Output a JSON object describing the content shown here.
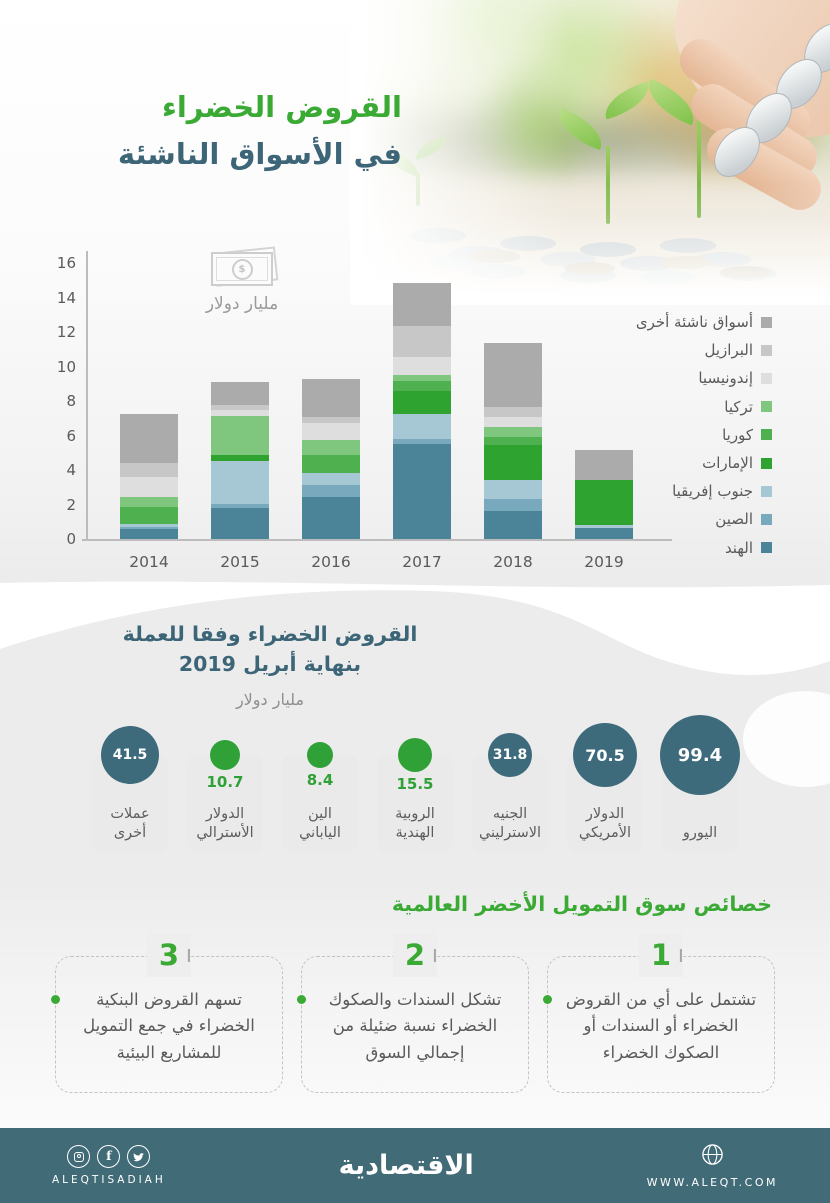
{
  "colors": {
    "accent_green": "#3aaa35",
    "heading_teal": "#3c6577",
    "circle_teal": "#3d6b7c",
    "circle_green": "#2fa136",
    "footer_bg": "#426b78",
    "axis_gray": "#bcbcbc"
  },
  "header": {
    "title_line1": "القروض الخضراء",
    "title_line2": "في الأسواق الناشئة"
  },
  "chart_data": [
    {
      "type": "bar",
      "stacked": true,
      "title": "القروض الخضراء في الأسواق الناشئة",
      "unit_label": "مليار دولار",
      "currency_symbol": "$",
      "categories": [
        "2014",
        "2015",
        "2016",
        "2017",
        "2018",
        "2019"
      ],
      "series": [
        {
          "name": "الهند",
          "color": "#4b8498",
          "values": [
            0.6,
            1.8,
            2.45,
            5.5,
            1.6,
            0.65
          ]
        },
        {
          "name": "الصين",
          "color": "#79a9bc",
          "values": [
            0.1,
            0.25,
            0.7,
            0.3,
            0.7,
            0
          ]
        },
        {
          "name": "جنوب إفريقيا",
          "color": "#a6c8d4",
          "values": [
            0.15,
            2.45,
            0.7,
            1.45,
            1.1,
            0.15
          ]
        },
        {
          "name": "الإمارات",
          "color": "#2ea330",
          "values": [
            0,
            0.35,
            0,
            1.35,
            2.05,
            2.65
          ]
        },
        {
          "name": "كوريا",
          "color": "#4fb04f",
          "values": [
            1.0,
            0,
            1.05,
            0.55,
            0.45,
            0
          ]
        },
        {
          "name": "تركيا",
          "color": "#7fc77f",
          "values": [
            0.6,
            2.3,
            0.85,
            0.35,
            0.6,
            0
          ]
        },
        {
          "name": "إندونيسيا",
          "color": "#dedede",
          "values": [
            1.15,
            0.35,
            1.0,
            1.05,
            0.55,
            0
          ]
        },
        {
          "name": "البرازيل",
          "color": "#c7c7c7",
          "values": [
            0.8,
            0.25,
            0.35,
            1.8,
            0.6,
            0
          ]
        },
        {
          "name": "أسواق ناشئة أخرى",
          "color": "#ababab",
          "values": [
            2.85,
            1.35,
            2.2,
            2.5,
            3.7,
            1.7
          ]
        }
      ],
      "ylim": [
        0,
        16
      ],
      "y_ticks": [
        0,
        2,
        4,
        6,
        8,
        10,
        12,
        14,
        16
      ],
      "grid": false,
      "legend_position": "right"
    },
    {
      "type": "bubble",
      "title_line1": "القروض الخضراء وفقا للعملة",
      "title_line2": "بنهاية أبريل 2019",
      "unit_label": "مليار دولار",
      "items": [
        {
          "label": "عملات\nأخرى",
          "value": 41.5,
          "style": "teal",
          "d": 58
        },
        {
          "label": "الدولار\nالأسترالي",
          "value": 10.7,
          "style": "green",
          "d": 30
        },
        {
          "label": "الين\nالياباني",
          "value": 8.4,
          "style": "green",
          "d": 26
        },
        {
          "label": "الروبية\nالهندية",
          "value": 15.5,
          "style": "green",
          "d": 34
        },
        {
          "label": "الجنيه\nالاسترليني",
          "value": 31.8,
          "style": "teal",
          "d": 44
        },
        {
          "label": "الدولار\nالأمريكي",
          "value": 70.5,
          "style": "teal",
          "d": 64
        },
        {
          "label": "اليورو",
          "value": 99.4,
          "style": "teal",
          "d": 80
        }
      ]
    }
  ],
  "features": {
    "title": "خصائص سوق التمويل الأخضر العالمية",
    "items": [
      {
        "num": "1",
        "text": "تشتمل على أي من القروض الخضراء أو السندات أو الصكوك الخضراء"
      },
      {
        "num": "2",
        "text": "تشكل السندات والصكوك الخضراء نسبة ضئيلة من إجمالي السوق"
      },
      {
        "num": "3",
        "text": "تسهم القروض البنكية الخضراء في جمع التمويل للمشاريع البيئية"
      }
    ]
  },
  "footer": {
    "brand_latin": "ALEQTISADIAH",
    "logo_arabic": "الاقتصادية",
    "website": "WWW.ALEQT.COM",
    "social_icons": [
      "instagram-icon",
      "facebook-icon",
      "twitter-icon"
    ],
    "globe_icon": "globe-icon"
  }
}
